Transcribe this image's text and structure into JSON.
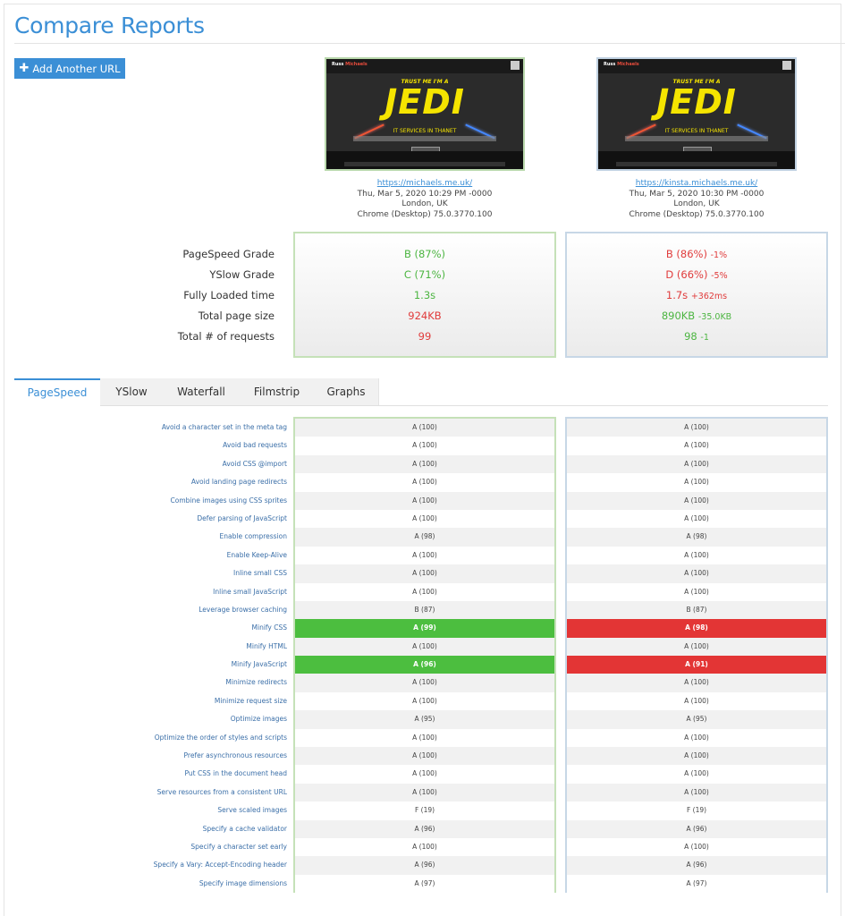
{
  "page_title": "Compare Reports",
  "add_button_label": "Add Another URL",
  "reports": [
    {
      "url": "https://michaels.me.uk/",
      "date": "Thu, Mar 5, 2020 10:29 PM -0000",
      "location": "London, UK",
      "browser": "Chrome (Desktop) 75.0.3770.100",
      "thumb_tag": "TRUST ME I'M A",
      "thumb_title": "JEDI",
      "thumb_sub": "IT SERVICES IN THANET"
    },
    {
      "url": "https://kinsta.michaels.me.uk/",
      "date": "Thu, Mar 5, 2020 10:30 PM -0000",
      "location": "London, UK",
      "browser": "Chrome (Desktop) 75.0.3770.100",
      "thumb_tag": "TRUST ME I'M A",
      "thumb_title": "JEDI",
      "thumb_sub": "IT SERVICES IN THANET"
    }
  ],
  "grade_labels": [
    "PageSpeed Grade",
    "YSlow Grade",
    "Fully Loaded time",
    "Total page size",
    "Total # of requests"
  ],
  "grades_a": [
    {
      "value": "B (87%)",
      "status": "good"
    },
    {
      "value": "C (71%)",
      "status": "good"
    },
    {
      "value": "1.3s",
      "status": "good"
    },
    {
      "value": "924KB",
      "status": "bad"
    },
    {
      "value": "99",
      "status": "bad"
    }
  ],
  "grades_b": [
    {
      "value": "B (86%)",
      "diff": "-1%",
      "status": "bad"
    },
    {
      "value": "D (66%)",
      "diff": "-5%",
      "status": "bad"
    },
    {
      "value": "1.7s",
      "diff": "+362ms",
      "status": "bad"
    },
    {
      "value": "890KB",
      "diff": "-35.0KB",
      "status": "good"
    },
    {
      "value": "98",
      "diff": "-1",
      "status": "good"
    }
  ],
  "tabs": [
    "PageSpeed",
    "YSlow",
    "Waterfall",
    "Filmstrip",
    "Graphs"
  ],
  "active_tab": "PageSpeed",
  "rules": [
    {
      "name": "Avoid a character set in the meta tag",
      "a": "A (100)",
      "b": "A (100)"
    },
    {
      "name": "Avoid bad requests",
      "a": "A (100)",
      "b": "A (100)"
    },
    {
      "name": "Avoid CSS @import",
      "a": "A (100)",
      "b": "A (100)"
    },
    {
      "name": "Avoid landing page redirects",
      "a": "A (100)",
      "b": "A (100)"
    },
    {
      "name": "Combine images using CSS sprites",
      "a": "A (100)",
      "b": "A (100)"
    },
    {
      "name": "Defer parsing of JavaScript",
      "a": "A (100)",
      "b": "A (100)"
    },
    {
      "name": "Enable compression",
      "a": "A (98)",
      "b": "A (98)"
    },
    {
      "name": "Enable Keep-Alive",
      "a": "A (100)",
      "b": "A (100)"
    },
    {
      "name": "Inline small CSS",
      "a": "A (100)",
      "b": "A (100)"
    },
    {
      "name": "Inline small JavaScript",
      "a": "A (100)",
      "b": "A (100)"
    },
    {
      "name": "Leverage browser caching",
      "a": "B (87)",
      "b": "B (87)"
    },
    {
      "name": "Minify CSS",
      "a": "A (99)",
      "b": "A (98)",
      "highlight": true
    },
    {
      "name": "Minify HTML",
      "a": "A (100)",
      "b": "A (100)"
    },
    {
      "name": "Minify JavaScript",
      "a": "A (96)",
      "b": "A (91)",
      "highlight": true
    },
    {
      "name": "Minimize redirects",
      "a": "A (100)",
      "b": "A (100)"
    },
    {
      "name": "Minimize request size",
      "a": "A (100)",
      "b": "A (100)"
    },
    {
      "name": "Optimize images",
      "a": "A (95)",
      "b": "A (95)"
    },
    {
      "name": "Optimize the order of styles and scripts",
      "a": "A (100)",
      "b": "A (100)"
    },
    {
      "name": "Prefer asynchronous resources",
      "a": "A (100)",
      "b": "A (100)"
    },
    {
      "name": "Put CSS in the document head",
      "a": "A (100)",
      "b": "A (100)"
    },
    {
      "name": "Serve resources from a consistent URL",
      "a": "A (100)",
      "b": "A (100)"
    },
    {
      "name": "Serve scaled images",
      "a": "F (19)",
      "b": "F (19)"
    },
    {
      "name": "Specify a cache validator",
      "a": "A (96)",
      "b": "A (96)"
    },
    {
      "name": "Specify a character set early",
      "a": "A (100)",
      "b": "A (100)"
    },
    {
      "name": "Specify a Vary: Accept-Encoding header",
      "a": "A (96)",
      "b": "A (96)"
    },
    {
      "name": "Specify image dimensions",
      "a": "A (97)",
      "b": "A (97)"
    }
  ],
  "colors": {
    "accent": "#3b8fd6",
    "good": "#4cb541",
    "bad": "#e03c3c",
    "win_bg": "#4cbe3f",
    "lose_bg": "#e33535"
  }
}
